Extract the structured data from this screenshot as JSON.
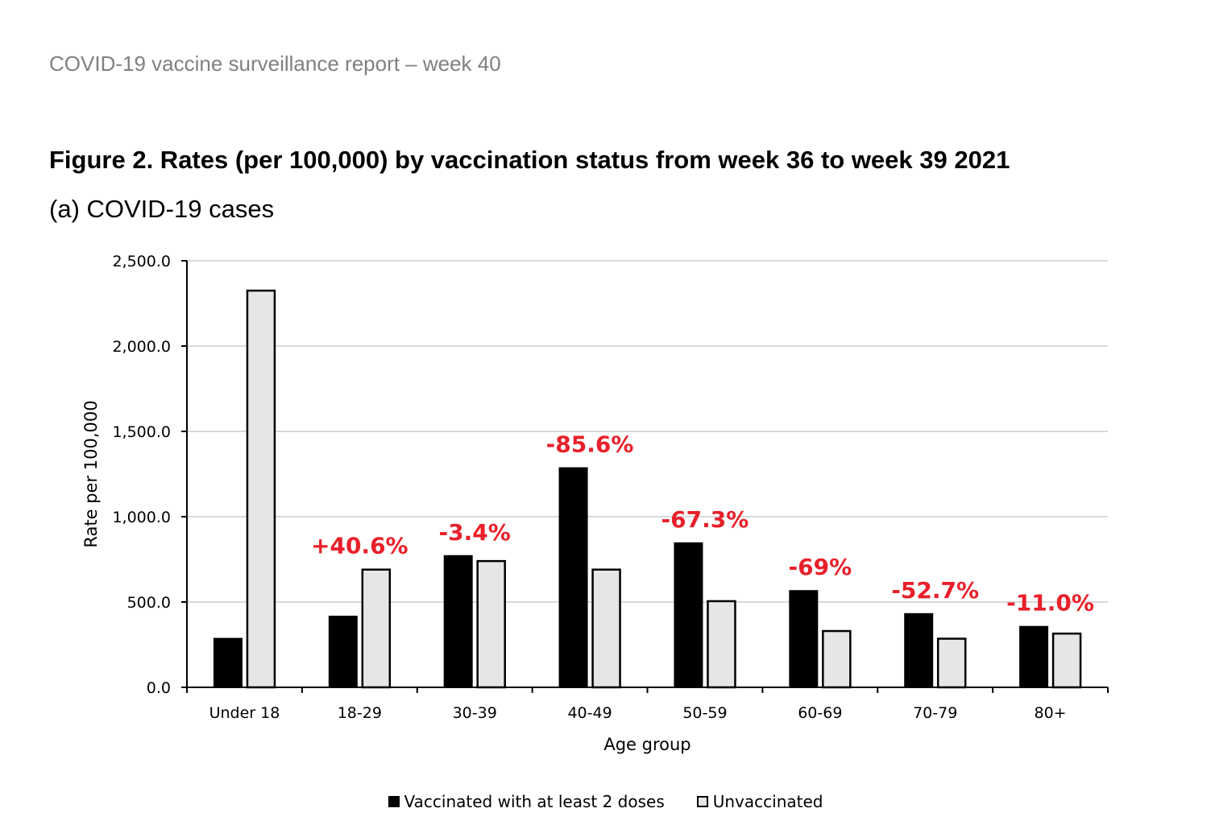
{
  "report_header": "COVID-19 vaccine surveillance report – week 40",
  "figure": {
    "title": "Figure 2. Rates (per 100,000) by vaccination status from week 36 to week 39 2021",
    "subtitle": "(a) COVID-19 cases"
  },
  "colors": {
    "vaccinated": "#000000",
    "unvaccinated": "#e6e6e6",
    "annotation": "#e8202a",
    "grid": "#d9d9d9"
  },
  "chart_data": {
    "type": "bar",
    "xlabel": "Age group",
    "ylabel": "Rate per 100,000",
    "ylim": [
      0,
      2500
    ],
    "yticks": [
      0,
      500,
      1000,
      1500,
      2000,
      2500
    ],
    "ytick_labels": [
      "0.0",
      "500.0",
      "1,000.0",
      "1,500.0",
      "2,000.0",
      "2,500.0"
    ],
    "grid": true,
    "legend_position": "bottom",
    "categories": [
      "Under 18",
      "18-29",
      "30-39",
      "40-49",
      "50-59",
      "60-69",
      "70-79",
      "80+"
    ],
    "series": [
      {
        "name": "Vaccinated with at least 2 doses",
        "values": [
          285,
          415,
          770,
          1285,
          845,
          565,
          430,
          355
        ]
      },
      {
        "name": "Unvaccinated",
        "values": [
          2325,
          690,
          740,
          690,
          505,
          330,
          285,
          315
        ]
      }
    ],
    "annotations": [
      "",
      "+40.6%",
      "-3.4%",
      "-85.6%",
      "-67.3%",
      "-69%",
      "-52.7%",
      "-11.0%"
    ]
  }
}
